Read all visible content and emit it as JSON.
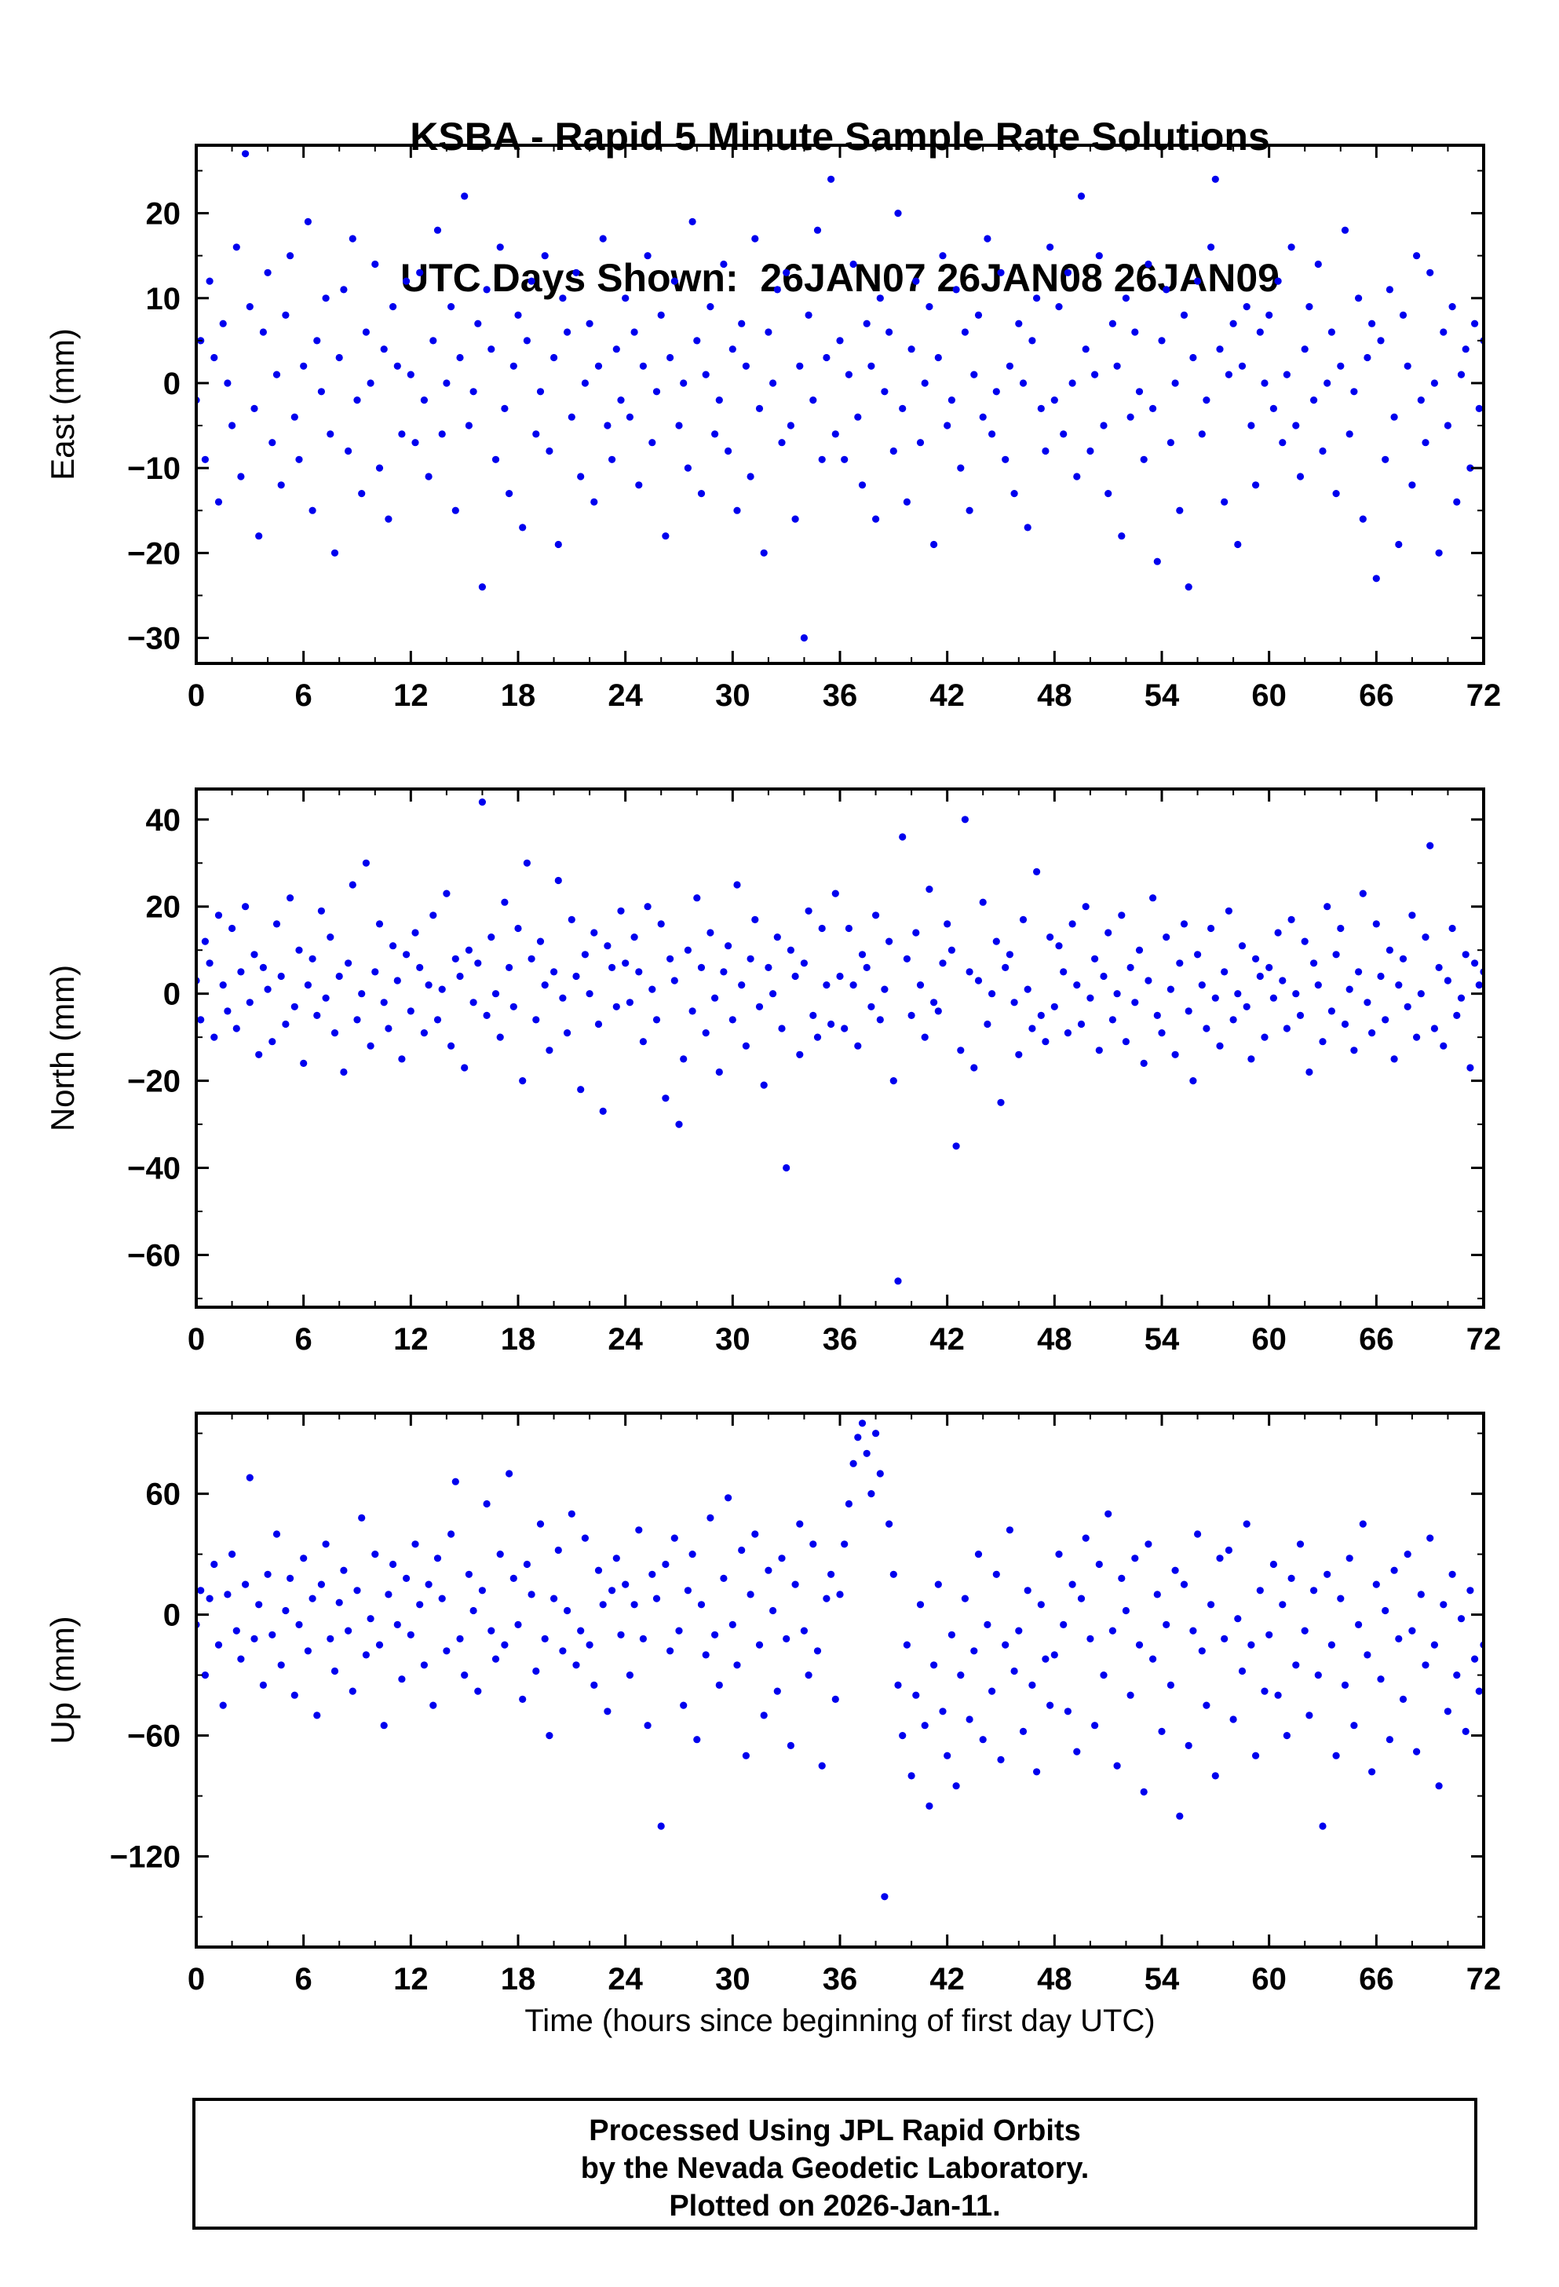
{
  "title": {
    "line1": "KSBA - Rapid 5 Minute Sample Rate Solutions",
    "line2": "UTC Days Shown:  26JAN07 26JAN08 26JAN09"
  },
  "footer": {
    "line1": "Processed Using JPL Rapid Orbits",
    "line2": "by the Nevada Geodetic Laboratory.",
    "line3": "Plotted on 2026-Jan-11."
  },
  "xaxis": {
    "label": "Time (hours since beginning of first day UTC)",
    "min": 0,
    "max": 72,
    "tick_step": 6,
    "minor_step": 2,
    "ticks": [
      0,
      6,
      12,
      18,
      24,
      30,
      36,
      42,
      48,
      54,
      60,
      66,
      72
    ]
  },
  "style": {
    "point_color": "#0000ee",
    "frame_color": "#000000"
  },
  "chart_data": [
    {
      "type": "scatter",
      "name": "East",
      "ylabel": "East (mm)",
      "ylim": [
        -33,
        28
      ],
      "yticks": [
        -30,
        -20,
        -10,
        0,
        10,
        20
      ],
      "ytick_minor": 5,
      "frame_height": 660,
      "x_start": 0,
      "x_step": 0.25,
      "y": [
        -2,
        5,
        -9,
        12,
        3,
        -14,
        7,
        0,
        -5,
        16,
        -11,
        27,
        9,
        -3,
        -18,
        6,
        13,
        -7,
        1,
        -12,
        8,
        15,
        -4,
        -9,
        2,
        19,
        -15,
        5,
        -1,
        10,
        -6,
        -20,
        3,
        11,
        -8,
        17,
        -2,
        -13,
        6,
        0,
        14,
        -10,
        4,
        -16,
        9,
        2,
        -6,
        12,
        1,
        -7,
        13,
        -2,
        -11,
        5,
        18,
        -6,
        0,
        9,
        -15,
        3,
        22,
        -5,
        -1,
        7,
        -24,
        11,
        4,
        -9,
        16,
        -3,
        -13,
        2,
        8,
        -17,
        5,
        12,
        -6,
        -1,
        15,
        -8,
        3,
        -19,
        10,
        6,
        -4,
        13,
        -11,
        0,
        7,
        -14,
        2,
        17,
        -5,
        -9,
        4,
        -2,
        10,
        -4,
        6,
        -12,
        2,
        15,
        -7,
        -1,
        8,
        -18,
        3,
        12,
        -5,
        0,
        -10,
        19,
        5,
        -13,
        1,
        9,
        -6,
        -2,
        14,
        -8,
        4,
        -15,
        7,
        2,
        -11,
        17,
        -3,
        -20,
        6,
        0,
        11,
        -7,
        13,
        -5,
        -16,
        2,
        -30,
        8,
        -2,
        18,
        -9,
        3,
        24,
        -6,
        5,
        -9,
        1,
        14,
        -4,
        -12,
        7,
        2,
        -16,
        10,
        -1,
        6,
        -8,
        20,
        -3,
        -14,
        4,
        12,
        -7,
        0,
        9,
        -19,
        3,
        15,
        -5,
        -2,
        11,
        -10,
        6,
        -15,
        1,
        8,
        -4,
        17,
        -6,
        -1,
        13,
        -9,
        2,
        -13,
        7,
        0,
        -17,
        5,
        10,
        -3,
        -8,
        16,
        -2,
        9,
        -6,
        13,
        0,
        -11,
        22,
        4,
        -8,
        1,
        15,
        -5,
        -13,
        7,
        2,
        -18,
        10,
        -4,
        6,
        -1,
        -9,
        14,
        -3,
        -21,
        5,
        11,
        -7,
        0,
        -15,
        8,
        -24,
        3,
        12,
        -6,
        -2,
        16,
        24,
        4,
        -14,
        1,
        7,
        -19,
        2,
        9,
        -5,
        -12,
        6,
        0,
        8,
        -3,
        12,
        -7,
        1,
        16,
        -5,
        -11,
        4,
        9,
        -2,
        14,
        -8,
        0,
        6,
        -13,
        2,
        18,
        -6,
        -1,
        10,
        -16,
        3,
        7,
        -23,
        5,
        -9,
        11,
        -4,
        -19,
        8,
        2,
        -12,
        15,
        -2,
        -7,
        13,
        0,
        -20,
        6,
        -5,
        9,
        -14,
        1,
        4,
        -10,
        7,
        -3,
        5
      ]
    },
    {
      "type": "scatter",
      "name": "North",
      "ylabel": "North (mm)",
      "ylim": [
        -72,
        47
      ],
      "yticks": [
        -60,
        -40,
        -20,
        0,
        20,
        40
      ],
      "ytick_minor": 10,
      "frame_height": 660,
      "x_start": 0,
      "x_step": 0.25,
      "y": [
        3,
        -6,
        12,
        7,
        -10,
        18,
        2,
        -4,
        15,
        -8,
        5,
        20,
        -2,
        9,
        -14,
        6,
        1,
        -11,
        16,
        4,
        -7,
        22,
        -3,
        10,
        -16,
        2,
        8,
        -5,
        19,
        -1,
        13,
        -9,
        4,
        -18,
        7,
        25,
        -6,
        0,
        30,
        -12,
        5,
        16,
        -2,
        -8,
        11,
        3,
        -15,
        9,
        -4,
        14,
        6,
        -9,
        2,
        18,
        -6,
        1,
        23,
        -12,
        8,
        4,
        -17,
        10,
        -2,
        7,
        44,
        -5,
        13,
        0,
        -10,
        21,
        6,
        -3,
        15,
        -20,
        30,
        8,
        -6,
        12,
        2,
        -13,
        5,
        26,
        -1,
        -9,
        17,
        4,
        -22,
        9,
        0,
        14,
        -7,
        -27,
        11,
        6,
        -3,
        19,
        7,
        -2,
        13,
        5,
        -11,
        20,
        1,
        -6,
        16,
        -24,
        8,
        3,
        -30,
        -15,
        10,
        -4,
        22,
        6,
        -9,
        14,
        -1,
        -18,
        5,
        11,
        -6,
        25,
        2,
        -12,
        8,
        17,
        -3,
        -21,
        6,
        0,
        13,
        -8,
        -40,
        10,
        4,
        -14,
        7,
        19,
        -5,
        -10,
        15,
        2,
        -7,
        23,
        4,
        -8,
        15,
        2,
        -12,
        9,
        6,
        -3,
        18,
        -6,
        1,
        12,
        -20,
        -66,
        36,
        8,
        -5,
        14,
        2,
        -10,
        24,
        -2,
        -4,
        7,
        16,
        10,
        -35,
        -13,
        40,
        5,
        -17,
        3,
        21,
        -7,
        0,
        12,
        -25,
        6,
        9,
        -2,
        -14,
        17,
        1,
        -8,
        28,
        -5,
        -11,
        13,
        -3,
        11,
        5,
        -9,
        16,
        2,
        -7,
        20,
        -1,
        8,
        -13,
        4,
        14,
        -6,
        0,
        18,
        -11,
        6,
        -2,
        10,
        -16,
        3,
        22,
        -5,
        -9,
        13,
        1,
        -14,
        7,
        16,
        -4,
        -20,
        9,
        2,
        -8,
        15,
        -1,
        -12,
        5,
        19,
        -6,
        0,
        11,
        -3,
        -15,
        8,
        4,
        -10,
        6,
        -1,
        14,
        3,
        -8,
        17,
        0,
        -5,
        12,
        -18,
        7,
        2,
        -11,
        20,
        -4,
        9,
        15,
        -7,
        1,
        -13,
        5,
        23,
        -2,
        -9,
        16,
        4,
        -6,
        10,
        -15,
        2,
        8,
        -3,
        18,
        -10,
        0,
        13,
        34,
        -8,
        6,
        -12,
        3,
        15,
        -5,
        -1,
        9,
        -17,
        7,
        2,
        5
      ]
    },
    {
      "type": "scatter",
      "name": "Up",
      "ylabel": "Up (mm)",
      "ylim": [
        -165,
        100
      ],
      "yticks": [
        -120,
        -60,
        0,
        60
      ],
      "ytick_minor": 30,
      "frame_height": 680,
      "x_start": 0,
      "x_step": 0.25,
      "y": [
        -5,
        12,
        -30,
        8,
        25,
        -15,
        -45,
        10,
        30,
        -8,
        -22,
        15,
        68,
        -12,
        5,
        -35,
        20,
        -10,
        40,
        -25,
        2,
        18,
        -40,
        -5,
        28,
        -18,
        8,
        -50,
        15,
        35,
        -12,
        -28,
        6,
        22,
        -8,
        -38,
        12,
        48,
        -20,
        -2,
        30,
        -15,
        -55,
        10,
        25,
        -5,
        -32,
        18,
        -10,
        35,
        5,
        -25,
        15,
        -45,
        28,
        8,
        -18,
        40,
        66,
        -12,
        -30,
        20,
        2,
        -38,
        12,
        55,
        -8,
        -22,
        30,
        -15,
        70,
        18,
        -5,
        -42,
        25,
        10,
        -28,
        45,
        -12,
        -60,
        8,
        32,
        -18,
        2,
        50,
        -25,
        -8,
        38,
        -15,
        -35,
        22,
        5,
        -48,
        12,
        28,
        -10,
        15,
        -30,
        5,
        42,
        -12,
        -55,
        20,
        8,
        -105,
        25,
        -18,
        38,
        -8,
        -45,
        12,
        30,
        -62,
        5,
        -20,
        48,
        -10,
        -35,
        18,
        58,
        -5,
        -25,
        32,
        -70,
        10,
        40,
        -15,
        -50,
        22,
        2,
        -38,
        28,
        -12,
        -65,
        15,
        45,
        -8,
        -30,
        35,
        -18,
        -75,
        8,
        20,
        -42,
        10,
        35,
        55,
        75,
        88,
        95,
        80,
        60,
        90,
        70,
        -140,
        45,
        20,
        -35,
        -60,
        -15,
        -80,
        -40,
        5,
        -55,
        -95,
        -25,
        15,
        -48,
        -70,
        -10,
        -85,
        -30,
        8,
        -52,
        -18,
        30,
        -62,
        -5,
        -38,
        20,
        -72,
        -15,
        42,
        -28,
        -8,
        -58,
        12,
        -35,
        -78,
        5,
        -22,
        -45,
        -20,
        30,
        -5,
        -48,
        15,
        -68,
        8,
        38,
        -12,
        -55,
        25,
        -30,
        50,
        -8,
        -75,
        18,
        2,
        -40,
        28,
        -15,
        -88,
        35,
        -22,
        10,
        -58,
        -5,
        -35,
        22,
        -100,
        15,
        -65,
        -8,
        40,
        -18,
        -45,
        5,
        -80,
        28,
        -12,
        32,
        -52,
        -2,
        -28,
        45,
        -15,
        -70,
        12,
        -38,
        -10,
        25,
        -40,
        5,
        -60,
        18,
        -25,
        35,
        -8,
        -50,
        12,
        -30,
        -105,
        20,
        -15,
        -70,
        8,
        -35,
        28,
        -55,
        -5,
        45,
        -20,
        -78,
        15,
        -32,
        2,
        -62,
        22,
        -12,
        -42,
        30,
        -8,
        -68,
        10,
        -25,
        38,
        -15,
        -85,
        5,
        -48,
        20,
        -30,
        -2,
        -58,
        12,
        -22,
        -38,
        -15
      ]
    }
  ]
}
